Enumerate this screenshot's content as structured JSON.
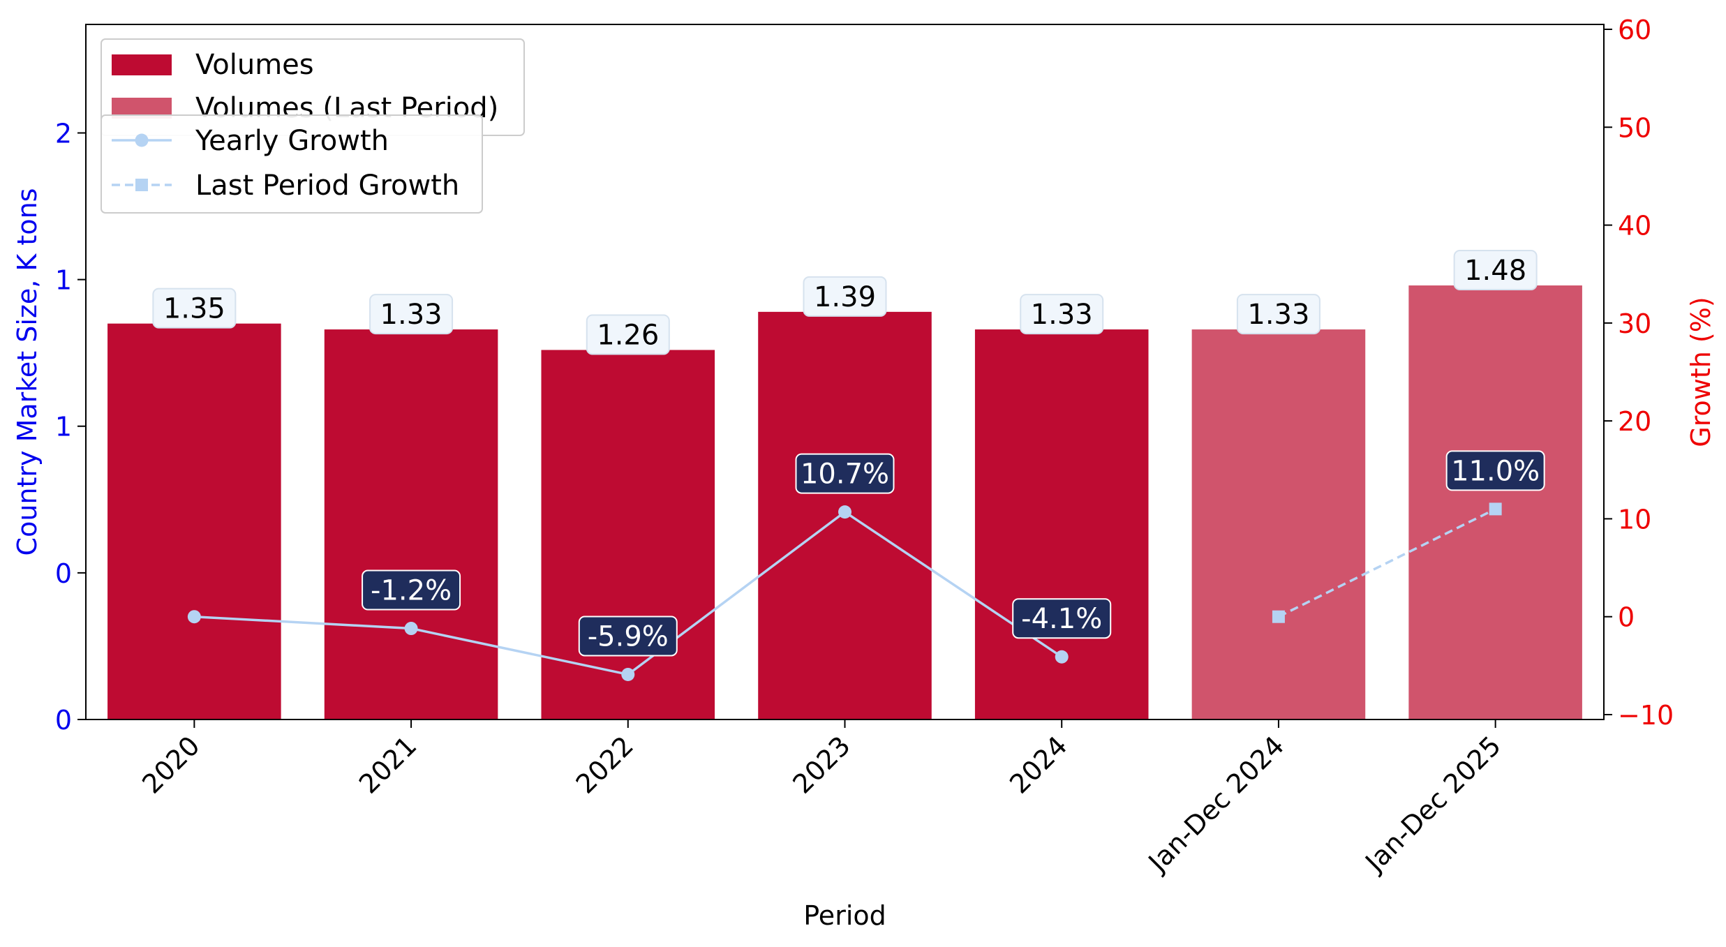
{
  "chart_data": {
    "type": "bar",
    "title": "",
    "xlabel": "Period",
    "ylabel_left": "Country Market Size, K tons",
    "ylabel_right": "Growth (%)",
    "categories": [
      "2020",
      "2021",
      "2022",
      "2023",
      "2024",
      "Jan-Dec 2024",
      "Jan-Dec 2025"
    ],
    "left_axis": {
      "ylim": [
        0,
        2.37
      ],
      "ticks": [
        0,
        0.5,
        1.0,
        1.5,
        2.0
      ],
      "tick_labels": [
        "0",
        "0",
        "1",
        "1",
        "2"
      ],
      "color": "#0000ee"
    },
    "right_axis": {
      "ylim": [
        -10.5,
        60.5
      ],
      "ticks": [
        -10,
        0,
        10,
        20,
        30,
        40,
        50,
        60
      ],
      "tick_labels": [
        "−10",
        "0",
        "10",
        "20",
        "30",
        "40",
        "50",
        "60"
      ],
      "color": "#ee0000"
    },
    "series": [
      {
        "name": "Volumes",
        "kind": "bar",
        "color": "#be0b32",
        "values": [
          1.35,
          1.33,
          1.26,
          1.39,
          1.33,
          null,
          null
        ],
        "labels": [
          "1.35",
          "1.33",
          "1.26",
          "1.39",
          "1.33",
          "",
          ""
        ]
      },
      {
        "name": "Volumes (Last Period)",
        "kind": "bar",
        "color": "#d0546c",
        "values": [
          null,
          null,
          null,
          null,
          null,
          1.33,
          1.48
        ],
        "labels": [
          "",
          "",
          "",
          "",
          "",
          "1.33",
          "1.48"
        ]
      },
      {
        "name": "Yearly Growth",
        "kind": "line",
        "style": "solid",
        "marker": "circle",
        "color": "#b5d3f3",
        "values": [
          0.0,
          -1.2,
          -5.9,
          10.7,
          -4.1,
          null,
          null
        ],
        "labels": [
          "",
          "-1.2%",
          "-5.9%",
          "10.7%",
          "-4.1%",
          "",
          ""
        ]
      },
      {
        "name": "Last Period Growth",
        "kind": "line",
        "style": "dashed",
        "marker": "square",
        "color": "#b5d3f3",
        "values": [
          null,
          null,
          null,
          null,
          null,
          0.0,
          11.0
        ],
        "labels": [
          "",
          "",
          "",
          "",
          "",
          "",
          "11.0%"
        ]
      }
    ],
    "legend_placement": "top-left",
    "grid": false
  }
}
